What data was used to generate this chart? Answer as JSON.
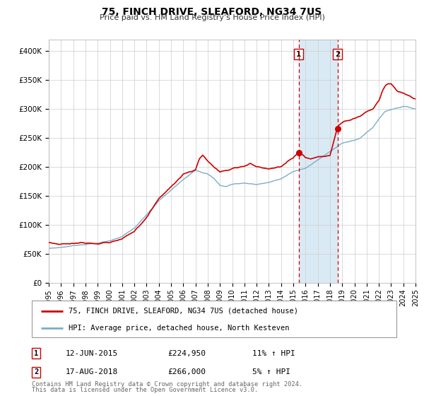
{
  "title": "75, FINCH DRIVE, SLEAFORD, NG34 7US",
  "subtitle": "Price paid vs. HM Land Registry's House Price Index (HPI)",
  "legend_line1": "75, FINCH DRIVE, SLEAFORD, NG34 7US (detached house)",
  "legend_line2": "HPI: Average price, detached house, North Kesteven",
  "annotation1_date": "12-JUN-2015",
  "annotation1_price": "£224,950",
  "annotation1_hpi": "11% ↑ HPI",
  "annotation2_date": "17-AUG-2018",
  "annotation2_price": "£266,000",
  "annotation2_hpi": "5% ↑ HPI",
  "footer1": "Contains HM Land Registry data © Crown copyright and database right 2024.",
  "footer2": "This data is licensed under the Open Government Licence v3.0.",
  "red_color": "#cc0000",
  "blue_color": "#7aadcb",
  "span_color": "#daeaf4",
  "grid_color": "#cccccc",
  "vline1_x": 2015.44,
  "vline2_x": 2018.62,
  "marker1_x": 2015.44,
  "marker1_y": 224950,
  "marker2_x": 2018.62,
  "marker2_y": 266000,
  "xlim": [
    1995,
    2025
  ],
  "ylim": [
    0,
    420000
  ],
  "yticks": [
    0,
    50000,
    100000,
    150000,
    200000,
    250000,
    300000,
    350000,
    400000
  ],
  "ytick_labels": [
    "£0",
    "£50K",
    "£100K",
    "£150K",
    "£200K",
    "£250K",
    "£300K",
    "£350K",
    "£400K"
  ],
  "xticks": [
    1995,
    1996,
    1997,
    1998,
    1999,
    2000,
    2001,
    2002,
    2003,
    2004,
    2005,
    2006,
    2007,
    2008,
    2009,
    2010,
    2011,
    2012,
    2013,
    2014,
    2015,
    2016,
    2017,
    2018,
    2019,
    2020,
    2021,
    2022,
    2023,
    2024,
    2025
  ]
}
